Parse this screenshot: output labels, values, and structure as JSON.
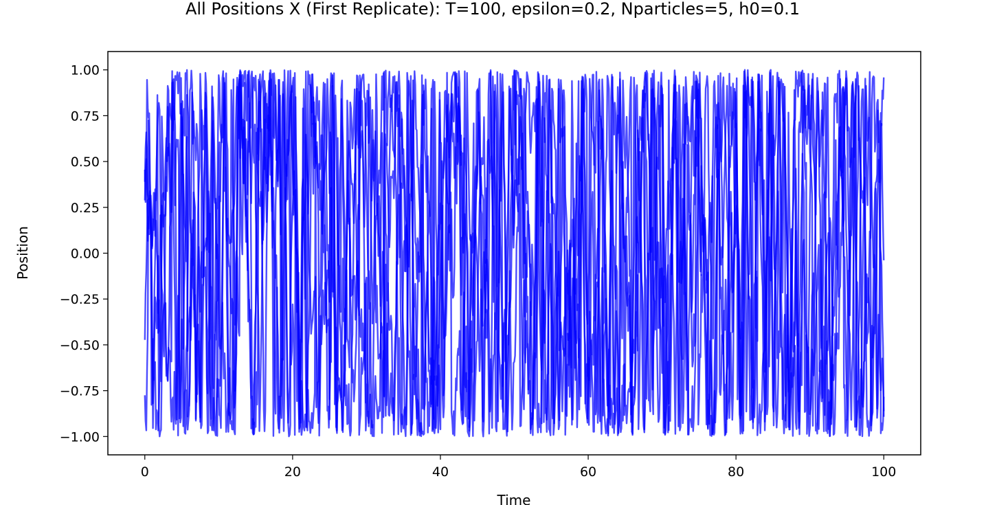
{
  "chart_data": {
    "type": "line",
    "title": "All Positions X (First Replicate): T=100, epsilon=0.2, Nparticles=5, h0=0.1",
    "xlabel": "Time",
    "ylabel": "Position",
    "xlim": [
      -5,
      105
    ],
    "ylim": [
      -1.1,
      1.1
    ],
    "x_ticks": [
      0,
      20,
      40,
      60,
      80,
      100
    ],
    "x_tick_labels": [
      "0",
      "20",
      "40",
      "60",
      "80",
      "100"
    ],
    "y_ticks": [
      1.0,
      0.75,
      0.5,
      0.25,
      0.0,
      -0.25,
      -0.5,
      -0.75,
      -1.0
    ],
    "y_tick_labels": [
      "1.00",
      "0.75",
      "0.50",
      "0.25",
      "0.00",
      "−0.25",
      "−0.50",
      "−0.75",
      "−1.00"
    ],
    "grid": false,
    "legend": "none",
    "series_color": "#0000ff",
    "series_opacity": 0.7,
    "series_count": 5,
    "samples_per_series": 1001,
    "x_start": 0,
    "x_end": 100,
    "value_range": [
      -1.0,
      1.0
    ]
  }
}
